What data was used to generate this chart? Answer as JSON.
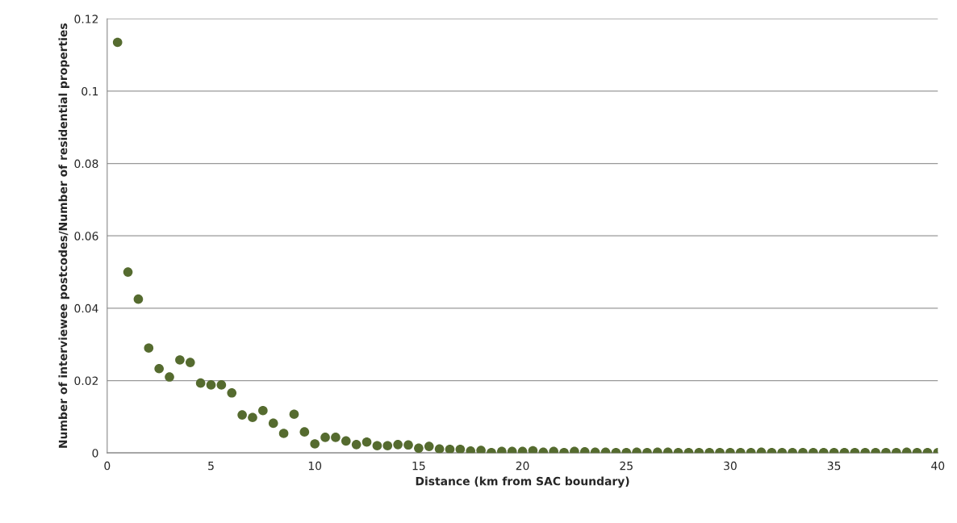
{
  "chart_data": {
    "type": "scatter",
    "xlabel": "Distance (km from SAC boundary)",
    "ylabel": "Number of interviewee postcodes/Number of residential properties",
    "x": [
      0.5,
      1,
      1.5,
      2,
      2.5,
      3,
      3.5,
      4,
      4.5,
      5,
      5.5,
      6,
      6.5,
      7,
      7.5,
      8,
      8.5,
      9,
      9.5,
      10,
      10.5,
      11,
      11.5,
      12,
      12.5,
      13,
      13.5,
      14,
      14.5,
      15,
      15.5,
      16,
      16.5,
      17,
      17.5,
      18,
      18.5,
      19,
      19.5,
      20,
      20.5,
      21,
      21.5,
      22,
      22.5,
      23,
      23.5,
      24,
      24.5,
      25,
      25.5,
      26,
      26.5,
      27,
      27.5,
      28,
      28.5,
      29,
      29.5,
      30,
      30.5,
      31,
      31.5,
      32,
      32.5,
      33,
      33.5,
      34,
      34.5,
      35,
      35.5,
      36,
      36.5,
      37,
      37.5,
      38,
      38.5,
      39,
      39.5,
      40
    ],
    "values": [
      0.1135,
      0.05,
      0.0425,
      0.029,
      0.0233,
      0.021,
      0.0257,
      0.025,
      0.0193,
      0.0188,
      0.0188,
      0.0166,
      0.0105,
      0.0098,
      0.0117,
      0.0082,
      0.0054,
      0.0107,
      0.0058,
      0.0025,
      0.0043,
      0.0043,
      0.0033,
      0.0023,
      0.003,
      0.002,
      0.002,
      0.0023,
      0.0022,
      0.0013,
      0.0018,
      0.0011,
      0.001,
      0.001,
      0.0005,
      0.0007,
      0.0001,
      0.0004,
      0.0004,
      0.0004,
      0.0006,
      0.0002,
      0.0004,
      0.0001,
      0.0004,
      0.0003,
      0.0002,
      0.0002,
      0.0001,
      0.0001,
      0.0002,
      0.0001,
      0.0002,
      0.0002,
      0.0001,
      0.0001,
      0.0001,
      0.0001,
      0.0001,
      0.0001,
      0.0001,
      0.0001,
      0.0002,
      0.0001,
      0.0001,
      0.0001,
      0.0001,
      0.0001,
      0.0001,
      0.0001,
      0.0001,
      0.0001,
      0.0001,
      0.0001,
      0.0001,
      0.0001,
      0.0002,
      0.0001,
      0.0001,
      0.0001
    ],
    "color": "#556b2f",
    "marker": "circle",
    "xlim": [
      0,
      40
    ],
    "xticks": [
      0,
      5,
      10,
      15,
      20,
      25,
      30,
      35,
      40
    ],
    "ylim": [
      0,
      0.12
    ],
    "yticks": [
      0,
      0.02,
      0.04,
      0.06,
      0.08,
      0.1,
      0.12
    ],
    "grid": "y",
    "legend": false
  }
}
